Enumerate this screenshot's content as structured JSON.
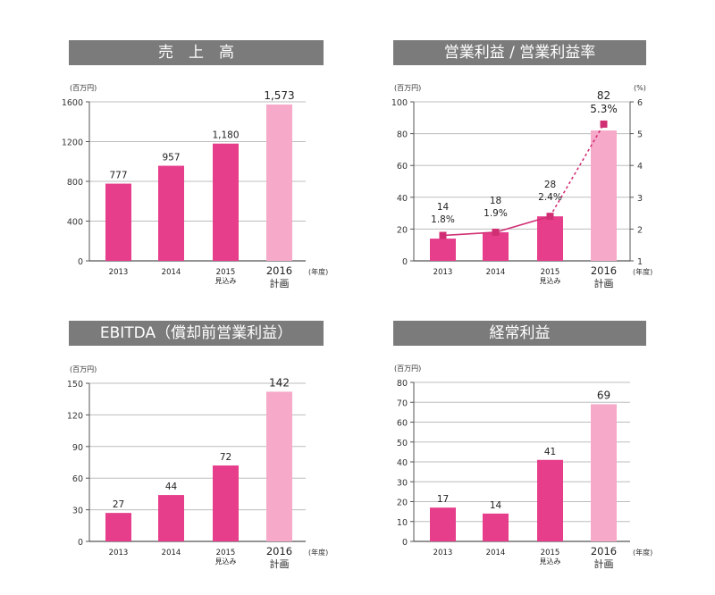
{
  "colors": {
    "bar": "#e63e8b",
    "bar_plan": "#f6a9c9",
    "grid": "#bdbdbd",
    "axis": "#555555",
    "title_bg": "#7b7b7b",
    "line": "#d12f74"
  },
  "units": {
    "yen": "(百万円)",
    "percent": "(%)",
    "year": "(年度)"
  },
  "years": [
    "2013",
    "2014",
    "2015",
    "2016"
  ],
  "year_notes": [
    "",
    "",
    "見込み",
    "計画"
  ],
  "chart_data": [
    {
      "id": "sales",
      "type": "bar",
      "title": "売　上　高",
      "categories": [
        "2013",
        "2014",
        "2015",
        "2016"
      ],
      "values": [
        777,
        957,
        1180,
        1573
      ],
      "labels": [
        "777",
        "957",
        "1,180",
        "1,573"
      ],
      "yticks": [
        "0",
        "400",
        "800",
        "1200",
        "1600"
      ],
      "ylim": [
        0,
        1600
      ],
      "ylabel": "(百万円)",
      "highlight_last": true
    },
    {
      "id": "operating",
      "type": "bar+line",
      "title": "営業利益 / 営業利益率",
      "categories": [
        "2013",
        "2014",
        "2015",
        "2016"
      ],
      "series": [
        {
          "values": [
            14,
            18,
            28,
            82
          ],
          "labels": [
            "14",
            "18",
            "28",
            "82"
          ]
        },
        {
          "values": [
            1.8,
            1.9,
            2.4,
            5.3
          ],
          "labels": [
            "1.8%",
            "1.9%",
            "2.4%",
            "5.3%"
          ]
        }
      ],
      "yticks": [
        "0",
        "20",
        "40",
        "60",
        "80",
        "100"
      ],
      "y2ticks": [
        "1",
        "2",
        "3",
        "4",
        "5",
        "6"
      ],
      "ylim": [
        0,
        100
      ],
      "y2lim": [
        1,
        6
      ],
      "ylabel": "(百万円)",
      "y2label": "(%)",
      "highlight_last": true
    },
    {
      "id": "ebitda",
      "type": "bar",
      "title": "EBITDA（償却前営業利益）",
      "categories": [
        "2013",
        "2014",
        "2015",
        "2016"
      ],
      "values": [
        27,
        44,
        72,
        142
      ],
      "labels": [
        "27",
        "44",
        "72",
        "142"
      ],
      "yticks": [
        "0",
        "30",
        "60",
        "90",
        "120",
        "150"
      ],
      "ylim": [
        0,
        150
      ],
      "ylabel": "(百万円)",
      "highlight_last": true
    },
    {
      "id": "ordinary",
      "type": "bar",
      "title": "経常利益",
      "categories": [
        "2013",
        "2014",
        "2015",
        "2016"
      ],
      "values": [
        17,
        14,
        41,
        69
      ],
      "labels": [
        "17",
        "14",
        "41",
        "69"
      ],
      "yticks": [
        "0",
        "10",
        "20",
        "30",
        "40",
        "50",
        "60",
        "70",
        "80"
      ],
      "ylim": [
        0,
        80
      ],
      "ylabel": "(百万円)",
      "highlight_last": true
    }
  ]
}
